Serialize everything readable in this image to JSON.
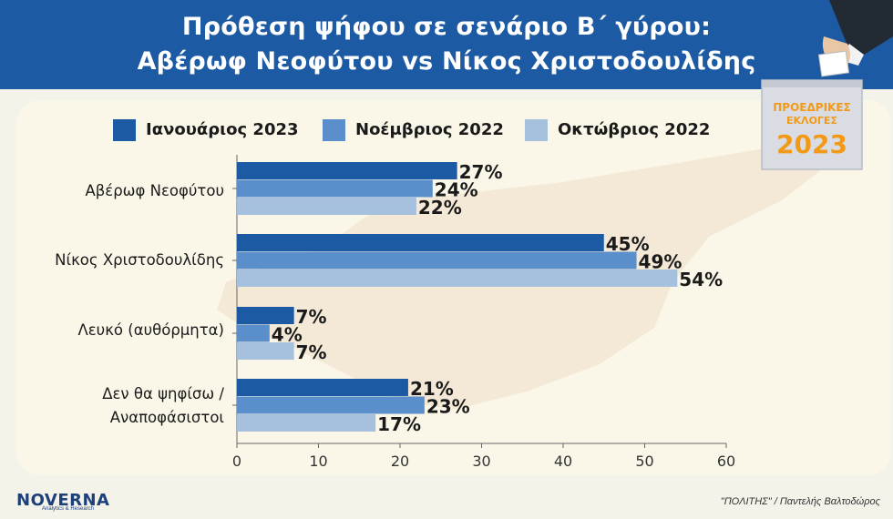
{
  "header": {
    "title_line1": "Πρόθεση ψήφου σε σενάριο Β΄ γύρου:",
    "title_line2": "Αβέρωφ Νεοφύτου vs Νίκος Χριστοδουλίδης"
  },
  "badge": {
    "line1": "ΠΡΟΕΔΡΙΚΕΣ",
    "line2": "ΕΚΛΟΓΕΣ",
    "year": "2023"
  },
  "footer": {
    "logo": "NOVERNA",
    "logo_sub": "Analytics & Research",
    "credit": "\"ΠΟΛΙΤΗΣ\" / Παντελής Βαλτοδώρος"
  },
  "colors": {
    "title_bg": "#1d5aa4",
    "series_jan": "#1d5aa4",
    "series_nov": "#5b8fcb",
    "series_oct": "#a5c1de"
  },
  "chart_data": {
    "type": "bar",
    "orientation": "horizontal",
    "categories": [
      "Αβέρωφ Νεοφύτου",
      "Νίκος Χριστοδουλίδης",
      "Λευκό (αυθόρμητα)",
      "Δεν θα ψηφίσω / Αναποφάσιστοι"
    ],
    "category_lines": [
      [
        "Αβέρωφ Νεοφύτου"
      ],
      [
        "Νίκος Χριστοδουλίδης"
      ],
      [
        "Λευκό (αυθόρμητα)"
      ],
      [
        "Δεν θα ψηφίσω /",
        "Αναποφάσιστοι"
      ]
    ],
    "series": [
      {
        "name": "Ιανουάριος 2023",
        "values": [
          27,
          45,
          7,
          21
        ],
        "labels": [
          "27%",
          "45%",
          "7%",
          "21%"
        ],
        "color": "#1d5aa4"
      },
      {
        "name": "Νοέμβριος 2022",
        "values": [
          24,
          49,
          4,
          23
        ],
        "labels": [
          "24%",
          "49%",
          "4%",
          "23%"
        ],
        "color": "#5b8fcb"
      },
      {
        "name": "Οκτώβριος 2022",
        "values": [
          22,
          54,
          7,
          17
        ],
        "labels": [
          "22%",
          "54%",
          "7%",
          "17%"
        ],
        "color": "#a5c1de"
      }
    ],
    "xlim": [
      0,
      60
    ],
    "xticks": [
      0,
      10,
      20,
      30,
      40,
      50,
      60
    ],
    "xtick_labels": [
      "0",
      "10",
      "20",
      "30",
      "40",
      "50",
      "60"
    ],
    "legend_position": "top",
    "grid": false
  }
}
